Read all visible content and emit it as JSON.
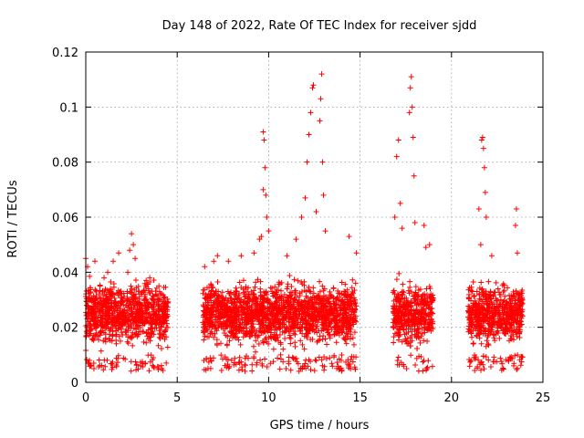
{
  "chart_data": {
    "type": "scatter",
    "title": "Day 148 of 2022, Rate Of TEC Index for receiver sjdd",
    "xlabel": "GPS time / hours",
    "ylabel": "ROTI / TECUs",
    "xlim": [
      0,
      25
    ],
    "ylim": [
      0,
      0.12
    ],
    "xticks": [
      0,
      5,
      10,
      15,
      20,
      25
    ],
    "xtick_labels": [
      "0",
      "5",
      "10",
      "15",
      "20",
      "25"
    ],
    "yticks": [
      0,
      0.02,
      0.04,
      0.06,
      0.08,
      0.1,
      0.12
    ],
    "ytick_labels": [
      "0",
      "0.02",
      "0.04",
      "0.06",
      "0.08",
      "0.1",
      "0.12"
    ],
    "grid": true,
    "marker": "plus",
    "color": "#ff0000",
    "series": [
      {
        "name": "ROTI",
        "coverage_hours": [
          [
            0.0,
            4.5
          ],
          [
            6.4,
            14.8
          ],
          [
            16.8,
            19.0
          ],
          [
            20.9,
            23.9
          ]
        ],
        "typical_range": [
          0.01,
          0.04
        ],
        "points": [
          [
            0.0,
            0.045
          ],
          [
            0.1,
            0.042
          ],
          [
            0.2,
            0.008
          ],
          [
            0.3,
            0.006
          ],
          [
            0.5,
            0.044
          ],
          [
            1.0,
            0.038
          ],
          [
            1.2,
            0.04
          ],
          [
            1.5,
            0.044
          ],
          [
            1.8,
            0.047
          ],
          [
            2.3,
            0.04
          ],
          [
            2.4,
            0.048
          ],
          [
            2.5,
            0.054
          ],
          [
            2.6,
            0.05
          ],
          [
            2.7,
            0.045
          ],
          [
            3.0,
            0.006
          ],
          [
            3.5,
            0.038
          ],
          [
            4.0,
            0.035
          ],
          [
            4.4,
            0.007
          ],
          [
            6.5,
            0.042
          ],
          [
            7.0,
            0.044
          ],
          [
            7.2,
            0.046
          ],
          [
            7.8,
            0.044
          ],
          [
            8.5,
            0.046
          ],
          [
            9.2,
            0.047
          ],
          [
            9.5,
            0.052
          ],
          [
            9.6,
            0.053
          ],
          [
            9.7,
            0.07
          ],
          [
            9.7,
            0.091
          ],
          [
            9.75,
            0.088
          ],
          [
            9.8,
            0.078
          ],
          [
            9.85,
            0.068
          ],
          [
            9.9,
            0.06
          ],
          [
            10.0,
            0.055
          ],
          [
            11.0,
            0.046
          ],
          [
            11.5,
            0.052
          ],
          [
            11.8,
            0.06
          ],
          [
            12.0,
            0.067
          ],
          [
            12.1,
            0.08
          ],
          [
            12.2,
            0.09
          ],
          [
            12.3,
            0.098
          ],
          [
            12.4,
            0.107
          ],
          [
            12.45,
            0.108
          ],
          [
            12.6,
            0.062
          ],
          [
            12.8,
            0.095
          ],
          [
            12.85,
            0.103
          ],
          [
            12.9,
            0.112
          ],
          [
            12.95,
            0.08
          ],
          [
            13.0,
            0.068
          ],
          [
            13.1,
            0.055
          ],
          [
            14.4,
            0.053
          ],
          [
            14.8,
            0.047
          ],
          [
            16.9,
            0.06
          ],
          [
            17.0,
            0.082
          ],
          [
            17.1,
            0.088
          ],
          [
            17.2,
            0.065
          ],
          [
            17.3,
            0.056
          ],
          [
            17.7,
            0.098
          ],
          [
            17.75,
            0.107
          ],
          [
            17.8,
            0.111
          ],
          [
            17.85,
            0.1
          ],
          [
            17.9,
            0.089
          ],
          [
            17.95,
            0.075
          ],
          [
            18.0,
            0.058
          ],
          [
            18.5,
            0.057
          ],
          [
            18.6,
            0.049
          ],
          [
            18.8,
            0.05
          ],
          [
            21.5,
            0.063
          ],
          [
            21.6,
            0.05
          ],
          [
            21.65,
            0.088
          ],
          [
            21.7,
            0.089
          ],
          [
            21.75,
            0.085
          ],
          [
            21.8,
            0.078
          ],
          [
            21.85,
            0.069
          ],
          [
            21.9,
            0.06
          ],
          [
            22.2,
            0.046
          ],
          [
            23.5,
            0.057
          ],
          [
            23.55,
            0.063
          ],
          [
            23.6,
            0.047
          ],
          [
            23.4,
            0.006
          ]
        ]
      }
    ]
  }
}
